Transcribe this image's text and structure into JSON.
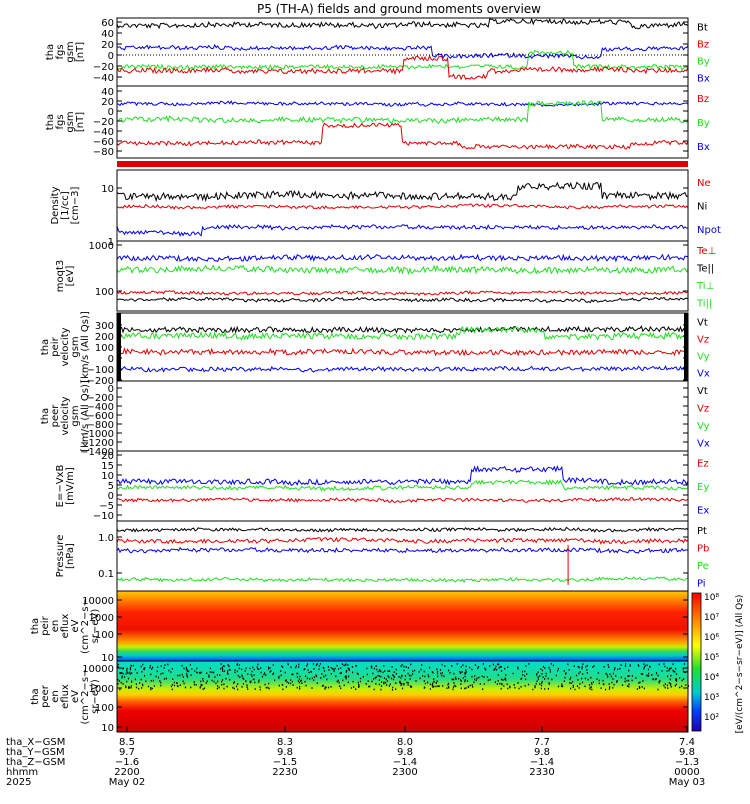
{
  "title": "P5 (TH-A) fields and ground moments overview",
  "colors": {
    "black": "#000000",
    "red": "#e00000",
    "green": "#22dd22",
    "blue": "#0000ee",
    "frame": "#000000"
  },
  "panels": [
    {
      "id": "fgs_full",
      "ylabel_lines": [
        "tha",
        "fgs",
        "gsm",
        "[nT]"
      ],
      "yticks": [
        "60",
        "40",
        "20",
        "0",
        "−20",
        "−40"
      ],
      "legend": [
        {
          "label": "Bt",
          "color": "#000000"
        },
        {
          "label": "Bz",
          "color": "#e00000"
        },
        {
          "label": "By",
          "color": "#22dd22"
        },
        {
          "label": "Bx",
          "color": "#0000ee"
        }
      ]
    },
    {
      "id": "fgs_dsl",
      "ylabel_lines": [
        "tha",
        "fgs",
        "gsm",
        "[nT]"
      ],
      "yticks": [
        "40",
        "20",
        "0",
        "−20",
        "−40",
        "−60",
        "−80"
      ],
      "legend": [
        {
          "label": "Bz",
          "color": "#e00000"
        },
        {
          "label": "By",
          "color": "#22dd22"
        },
        {
          "label": "Bx",
          "color": "#0000ee"
        }
      ]
    },
    {
      "id": "density",
      "ylabel_lines": [
        "Density",
        "[1/cc]",
        "[cm−3]"
      ],
      "yticks": [
        "10",
        "1"
      ],
      "legend": [
        {
          "label": "Ne",
          "color": "#e00000"
        },
        {
          "label": "Ni",
          "color": "#000000"
        },
        {
          "label": "Npot",
          "color": "#0000ee"
        }
      ]
    },
    {
      "id": "temperature",
      "ylabel_lines": [
        "moqt3",
        "[eV]"
      ],
      "yticks": [
        "1000",
        "100"
      ],
      "legend": [
        {
          "label": "Te⊥",
          "color": "#e00000"
        },
        {
          "label": "Te||",
          "color": "#000000"
        },
        {
          "label": "Ti⊥",
          "color": "#22dd22"
        },
        {
          "label": "Ti||",
          "color": "#22dd22"
        }
      ]
    },
    {
      "id": "peir_velocity",
      "ylabel_lines": [
        "tha",
        "peir",
        "velocity",
        "gsm",
        "[km/s (All Qs)]"
      ],
      "yticks": [
        "300",
        "200",
        "100",
        "0",
        "−100",
        "−200"
      ],
      "legend": [
        {
          "label": "Vt",
          "color": "#000000"
        },
        {
          "label": "Vz",
          "color": "#e00000"
        },
        {
          "label": "Vy",
          "color": "#22dd22"
        },
        {
          "label": "Vx",
          "color": "#0000ee"
        }
      ]
    },
    {
      "id": "peer_velocity",
      "ylabel_lines": [
        "tha",
        "peer",
        "velocity",
        "gsm",
        "[km/s (All Qs)]"
      ],
      "yticks": [
        "0",
        "−200",
        "−400",
        "−600",
        "−800",
        "−1000",
        "−1200",
        "−1400"
      ],
      "legend": [
        {
          "label": "Vt",
          "color": "#000000"
        },
        {
          "label": "Vz",
          "color": "#e00000"
        },
        {
          "label": "Vy",
          "color": "#22dd22"
        },
        {
          "label": "Vx",
          "color": "#0000ee"
        }
      ]
    },
    {
      "id": "efield",
      "ylabel_lines": [
        "E=−VxB",
        "[mV/m]"
      ],
      "yticks": [
        "20",
        "15",
        "10",
        "5",
        "0",
        "−5",
        "−10"
      ],
      "legend": [
        {
          "label": "Ez",
          "color": "#e00000"
        },
        {
          "label": "Ey",
          "color": "#22dd22"
        },
        {
          "label": "Ex",
          "color": "#0000ee"
        }
      ]
    },
    {
      "id": "pressure",
      "ylabel_lines": [
        "Pressure",
        "[nPa]"
      ],
      "yticks": [
        "1.0",
        "0.1"
      ],
      "legend": [
        {
          "label": "Pt",
          "color": "#000000"
        },
        {
          "label": "Pb",
          "color": "#e00000"
        },
        {
          "label": "Pe",
          "color": "#22dd22"
        },
        {
          "label": "Pi",
          "color": "#0000ee"
        }
      ]
    },
    {
      "id": "peir_spec",
      "ylabel_lines": [
        "tha",
        "peir",
        "en",
        "eflux",
        "eV",
        "(cm^2−s−",
        "sr−eV)"
      ],
      "yticks": [
        "10000",
        "1000",
        "100",
        "10"
      ],
      "legend": []
    },
    {
      "id": "peer_spec",
      "ylabel_lines": [
        "tha",
        "peer",
        "en",
        "eflux",
        "eV",
        "(cm^2−s−",
        "sr−eV)"
      ],
      "yticks": [
        "10000",
        "1000",
        "100",
        "10"
      ],
      "legend": []
    }
  ],
  "colorbar": {
    "ticks": [
      "10⁸",
      "10⁷",
      "10⁶",
      "10⁵",
      "10⁴",
      "10³",
      "10²"
    ],
    "label": "[eV/(cm^2−s−sr−eV)] (All Qs)"
  },
  "xaxis": {
    "row_labels": [
      "tha_X−GSM",
      "tha_Y−GSM",
      "tha_Z−GSM",
      "hhmm",
      "2025"
    ],
    "ticks": [
      {
        "rows": [
          "8.5",
          "9.7",
          "−1.6",
          "2200",
          "May 02"
        ]
      },
      {
        "rows": [
          "8.3",
          "9.8",
          "−1.5",
          "2230",
          ""
        ]
      },
      {
        "rows": [
          "8.0",
          "9.8",
          "−1.4",
          "2300",
          ""
        ]
      },
      {
        "rows": [
          "7.7",
          "9.8",
          "−1.4",
          "2330",
          ""
        ]
      },
      {
        "rows": [
          "7.4",
          "9.8",
          "−1.3",
          "0000",
          "May 03"
        ]
      }
    ]
  },
  "chart_data": {
    "type": "line",
    "title": "P5 (TH-A) fields and ground moments overview",
    "x_ticks": [
      "2200",
      "2230",
      "2300",
      "2330",
      "0000"
    ],
    "x_range": [
      "2025-05-02 22:00",
      "2025-05-03 00:00"
    ],
    "series": [
      {
        "panel": "fgs_full",
        "name": "Bt",
        "approx_level": 50,
        "range": [
          38,
          62
        ]
      },
      {
        "panel": "fgs_full",
        "name": "Bz",
        "approx_level": -20,
        "range": [
          -40,
          10
        ]
      },
      {
        "panel": "fgs_full",
        "name": "By",
        "approx_level": -20,
        "range": [
          -40,
          20
        ]
      },
      {
        "panel": "fgs_full",
        "name": "Bx",
        "approx_level": 5,
        "range": [
          -40,
          20
        ]
      },
      {
        "panel": "fgs_dsl",
        "name": "Bz",
        "approx_level": -60,
        "range": [
          -80,
          -20
        ]
      },
      {
        "panel": "fgs_dsl",
        "name": "By",
        "approx_level": -5,
        "range": [
          -20,
          40
        ]
      },
      {
        "panel": "fgs_dsl",
        "name": "Bx",
        "approx_level": 5,
        "range": [
          -10,
          20
        ]
      },
      {
        "panel": "density",
        "name": "Ni",
        "approx_level": 5
      },
      {
        "panel": "density",
        "name": "Ne",
        "approx_level": 3.5
      },
      {
        "panel": "density",
        "name": "Npot",
        "approx_level": 1.2
      },
      {
        "panel": "temperature",
        "name": "Ti⊥",
        "approx_level": 400
      },
      {
        "panel": "temperature",
        "name": "Te⊥",
        "approx_level": 85
      },
      {
        "panel": "temperature",
        "name": "Te||",
        "approx_level": 70
      },
      {
        "panel": "peir_velocity",
        "name": "Vt",
        "approx_level": 250
      },
      {
        "panel": "peir_velocity",
        "name": "Vy",
        "approx_level": 220
      },
      {
        "panel": "peir_velocity",
        "name": "Vz",
        "approx_level": 0
      },
      {
        "panel": "peir_velocity",
        "name": "Vx",
        "approx_level": -150
      },
      {
        "panel": "efield",
        "name": "Ex",
        "approx_level": 8
      },
      {
        "panel": "efield",
        "name": "Ey",
        "approx_level": 6
      },
      {
        "panel": "efield",
        "name": "Ez",
        "approx_level": 0
      },
      {
        "panel": "pressure",
        "name": "Pt",
        "approx_level": 1.0
      },
      {
        "panel": "pressure",
        "name": "Pb",
        "approx_level": 0.6
      },
      {
        "panel": "pressure",
        "name": "Pi",
        "approx_level": 0.35
      },
      {
        "panel": "pressure",
        "name": "Pe",
        "approx_level": 0.06
      }
    ]
  }
}
